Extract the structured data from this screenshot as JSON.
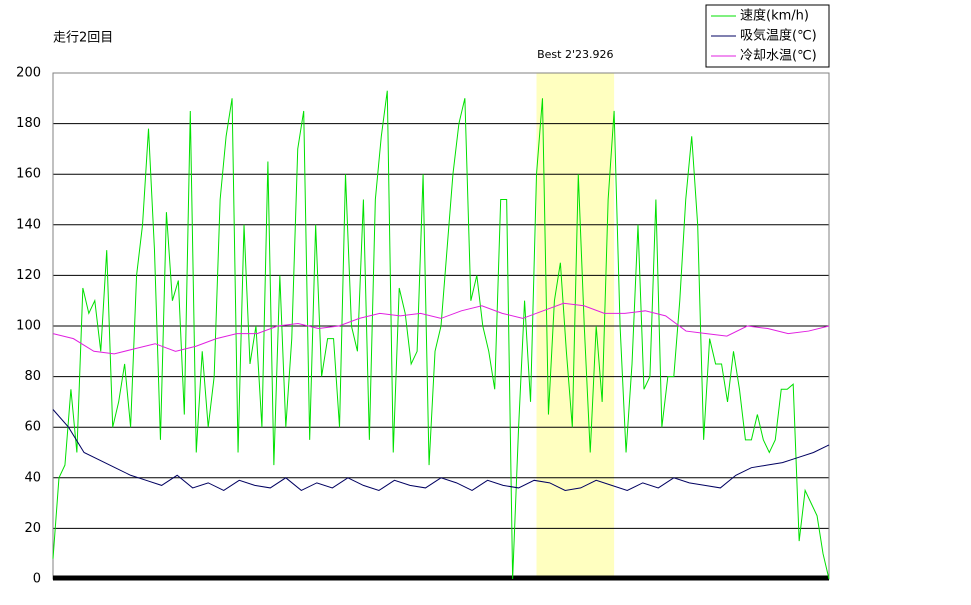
{
  "chart_data": {
    "type": "line",
    "title": "走行2回目",
    "ylim": [
      0,
      200
    ],
    "yticks": [
      0,
      20,
      40,
      60,
      80,
      100,
      120,
      140,
      160,
      180,
      200
    ],
    "grid": true,
    "legend": "top-right",
    "highlight": {
      "label": "Best 2'23.926",
      "start": 81,
      "end": 94,
      "color": "#ffffc0"
    },
    "series": [
      {
        "name": "速度(km/h)",
        "color": "#00e000",
        "values": [
          8,
          40,
          45,
          75,
          50,
          115,
          105,
          110,
          90,
          130,
          60,
          70,
          85,
          60,
          120,
          140,
          178,
          130,
          55,
          145,
          110,
          118,
          65,
          185,
          50,
          90,
          60,
          80,
          150,
          175,
          190,
          50,
          140,
          85,
          100,
          60,
          165,
          45,
          120,
          60,
          95,
          170,
          185,
          55,
          140,
          80,
          95,
          95,
          60,
          160,
          100,
          90,
          150,
          55,
          150,
          175,
          193,
          50,
          115,
          105,
          85,
          90,
          160,
          45,
          90,
          100,
          130,
          160,
          180,
          190,
          110,
          120,
          100,
          90,
          75,
          150,
          150,
          0,
          60,
          110,
          70,
          160,
          190,
          65,
          110,
          125,
          90,
          60,
          160,
          100,
          50,
          100,
          70,
          150,
          185,
          100,
          50,
          85,
          140,
          75,
          80,
          150,
          60,
          80,
          80,
          110,
          150,
          175,
          140,
          55,
          95,
          85,
          85,
          70,
          90,
          75,
          55,
          55,
          65,
          55,
          50,
          55,
          75,
          75,
          77,
          15,
          35,
          30,
          25,
          10,
          0
        ]
      },
      {
        "name": "吸気温度(℃)",
        "color": "#000060",
        "values": [
          67,
          60,
          50,
          47,
          44,
          41,
          39,
          37,
          41,
          36,
          38,
          35,
          39,
          37,
          36,
          40,
          35,
          38,
          36,
          40,
          37,
          35,
          39,
          37,
          36,
          40,
          38,
          35,
          39,
          37,
          36,
          39,
          38,
          35,
          36,
          39,
          37,
          35,
          38,
          36,
          40,
          38,
          37,
          36,
          41,
          44,
          45,
          46,
          48,
          50,
          53
        ]
      },
      {
        "name": "冷却水温(℃)",
        "color": "#e020e0",
        "values": [
          97,
          95,
          90,
          89,
          91,
          93,
          90,
          92,
          95,
          97,
          97,
          100,
          101,
          99,
          100,
          103,
          105,
          104,
          105,
          103,
          106,
          108,
          105,
          103,
          106,
          109,
          108,
          105,
          105,
          106,
          104,
          98,
          97,
          96,
          100,
          99,
          97,
          98,
          100
        ]
      }
    ]
  }
}
